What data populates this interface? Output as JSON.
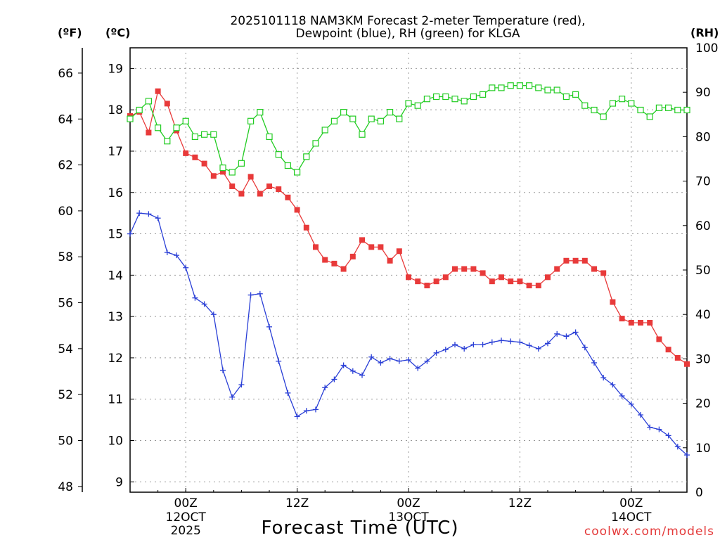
{
  "chart_data": {
    "type": "line",
    "title_line1": "2025101118 NAM3KM Forecast 2-meter Temperature (red),",
    "title_line2": "Dewpoint (blue), RH (green) for KLGA",
    "units": {
      "fahrenheit": "(ºF)",
      "celsius": "(ºC)",
      "rh": "(RH)"
    },
    "xlabel": "Forecast Time (UTC)",
    "credit": "coolwx.com/models",
    "x_unit": "hours from 2025-10-11 18Z",
    "xlim": [
      0,
      60
    ],
    "c_lim": [
      8.75,
      19.5
    ],
    "rh_lim": [
      0,
      100
    ],
    "f_ticks": [
      "48",
      "50",
      "52",
      "54",
      "56",
      "58",
      "60",
      "62",
      "64",
      "66"
    ],
    "c_ticks": [
      "9",
      "10",
      "11",
      "12",
      "13",
      "14",
      "15",
      "16",
      "17",
      "18",
      "19"
    ],
    "rh_ticks": [
      "0",
      "10",
      "20",
      "30",
      "40",
      "50",
      "60",
      "70",
      "80",
      "90",
      "100"
    ],
    "x_ticks": [
      {
        "hour": 6,
        "label": "00Z",
        "date": "12OCT",
        "year": "2025"
      },
      {
        "hour": 18,
        "label": "12Z",
        "date": "",
        "year": ""
      },
      {
        "hour": 30,
        "label": "00Z",
        "date": "13OCT",
        "year": ""
      },
      {
        "hour": 42,
        "label": "12Z",
        "date": "",
        "year": ""
      },
      {
        "hour": 54,
        "label": "00Z",
        "date": "14OCT",
        "year": ""
      }
    ],
    "colors": {
      "temperature": "#e83a3a",
      "dewpoint": "#2a3fd6",
      "rh": "#22cc22",
      "grid": "#999999"
    },
    "series": [
      {
        "name": "Temperature (°C)",
        "axis": "celsius",
        "marker": "filled-square",
        "color": "#e83a3a",
        "x": [
          0,
          1,
          2,
          3,
          4,
          5,
          6,
          7,
          8,
          9,
          10,
          11,
          12,
          13,
          14,
          15,
          16,
          17,
          18,
          19,
          20,
          21,
          22,
          23,
          24,
          25,
          26,
          27,
          28,
          29,
          30,
          31,
          32,
          33,
          34,
          35,
          36,
          37,
          38,
          39,
          40,
          41,
          42,
          43,
          44,
          45,
          46,
          47,
          48,
          49,
          50,
          51,
          52,
          53,
          54,
          55,
          56,
          57,
          58,
          59,
          60
        ],
        "values": [
          17.85,
          17.95,
          17.45,
          18.45,
          18.15,
          17.5,
          16.95,
          16.85,
          16.7,
          16.4,
          16.5,
          16.15,
          15.97,
          16.38,
          15.97,
          16.15,
          16.08,
          15.88,
          15.58,
          15.15,
          14.68,
          14.37,
          14.28,
          14.15,
          14.45,
          14.85,
          14.68,
          14.68,
          14.35,
          14.58,
          13.95,
          13.85,
          13.75,
          13.85,
          13.95,
          14.15,
          14.15,
          14.15,
          14.05,
          13.85,
          13.95,
          13.85,
          13.85,
          13.75,
          13.75,
          13.95,
          14.15,
          14.35,
          14.35,
          14.35,
          14.15,
          14.05,
          13.35,
          12.95,
          12.85,
          12.85,
          12.85,
          12.45,
          12.2,
          12.0,
          11.85
        ]
      },
      {
        "name": "Dewpoint (°C)",
        "axis": "celsius",
        "marker": "plus",
        "color": "#2a3fd6",
        "x": [
          0,
          1,
          2,
          3,
          4,
          5,
          6,
          7,
          8,
          9,
          10,
          11,
          12,
          13,
          14,
          15,
          16,
          17,
          18,
          19,
          20,
          21,
          22,
          23,
          24,
          25,
          26,
          27,
          28,
          29,
          30,
          31,
          32,
          33,
          34,
          35,
          36,
          37,
          38,
          39,
          40,
          41,
          42,
          43,
          44,
          45,
          46,
          47,
          48,
          49,
          50,
          51,
          52,
          53,
          54,
          55,
          56,
          57,
          58,
          59,
          60
        ],
        "values": [
          15.0,
          15.5,
          15.48,
          15.38,
          14.55,
          14.48,
          14.18,
          13.45,
          13.3,
          13.05,
          11.7,
          11.05,
          11.35,
          13.52,
          13.55,
          12.75,
          11.92,
          11.15,
          10.58,
          10.72,
          10.75,
          11.28,
          11.48,
          11.82,
          11.68,
          11.58,
          12.02,
          11.88,
          11.98,
          11.92,
          11.95,
          11.75,
          11.92,
          12.12,
          12.2,
          12.32,
          12.22,
          12.32,
          12.32,
          12.38,
          12.42,
          12.4,
          12.38,
          12.3,
          12.22,
          12.35,
          12.58,
          12.52,
          12.62,
          12.25,
          11.88,
          11.52,
          11.35,
          11.08,
          10.88,
          10.62,
          10.32,
          10.27,
          10.12,
          9.85,
          9.65
        ]
      },
      {
        "name": "RH (%)",
        "axis": "rh",
        "marker": "open-square",
        "color": "#22cc22",
        "x": [
          0,
          1,
          2,
          3,
          4,
          5,
          6,
          7,
          8,
          9,
          10,
          11,
          12,
          13,
          14,
          15,
          16,
          17,
          18,
          19,
          20,
          21,
          22,
          23,
          24,
          25,
          26,
          27,
          28,
          29,
          30,
          31,
          32,
          33,
          34,
          35,
          36,
          37,
          38,
          39,
          40,
          41,
          42,
          43,
          44,
          45,
          46,
          47,
          48,
          49,
          50,
          51,
          52,
          53,
          54,
          55,
          56,
          57,
          58,
          59,
          60
        ],
        "values": [
          84,
          86,
          88,
          82,
          79,
          82,
          83.5,
          80,
          80.5,
          80.5,
          73,
          72,
          74,
          83.5,
          85.5,
          80,
          76,
          73.5,
          72,
          75.5,
          78.5,
          81.5,
          83.5,
          85.5,
          84,
          80.5,
          84,
          83.5,
          85.5,
          84,
          87.5,
          87,
          88.5,
          89,
          89,
          88.5,
          88,
          89,
          89.5,
          91,
          91,
          91.5,
          91.5,
          91.5,
          91,
          90.5,
          90.5,
          89,
          89.5,
          87,
          86,
          84.5,
          87.5,
          88.5,
          87.5,
          86,
          84.5,
          86.5,
          86.5,
          86,
          86
        ]
      }
    ]
  }
}
